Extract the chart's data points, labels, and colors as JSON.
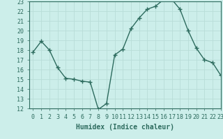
{
  "x": [
    0,
    1,
    2,
    3,
    4,
    5,
    6,
    7,
    8,
    9,
    10,
    11,
    12,
    13,
    14,
    15,
    16,
    17,
    18,
    19,
    20,
    21,
    22,
    23
  ],
  "y": [
    17.8,
    18.9,
    18.0,
    16.2,
    15.1,
    15.0,
    14.8,
    14.7,
    11.9,
    12.5,
    17.5,
    18.1,
    20.2,
    21.3,
    22.2,
    22.5,
    23.2,
    23.2,
    22.2,
    20.0,
    18.2,
    17.0,
    16.7,
    15.4
  ],
  "line_color": "#2d6b5e",
  "marker": "+",
  "bg_color": "#cceeea",
  "grid_color": "#b8ddd8",
  "xlabel": "Humidex (Indice chaleur)",
  "ylim": [
    12,
    23
  ],
  "xlim": [
    -0.5,
    23
  ],
  "yticks": [
    12,
    13,
    14,
    15,
    16,
    17,
    18,
    19,
    20,
    21,
    22,
    23
  ],
  "xticks": [
    0,
    1,
    2,
    3,
    4,
    5,
    6,
    7,
    8,
    9,
    10,
    11,
    12,
    13,
    14,
    15,
    16,
    17,
    18,
    19,
    20,
    21,
    22,
    23
  ],
  "xlabel_fontsize": 7,
  "tick_fontsize": 6,
  "line_width": 1.0,
  "marker_size": 4
}
